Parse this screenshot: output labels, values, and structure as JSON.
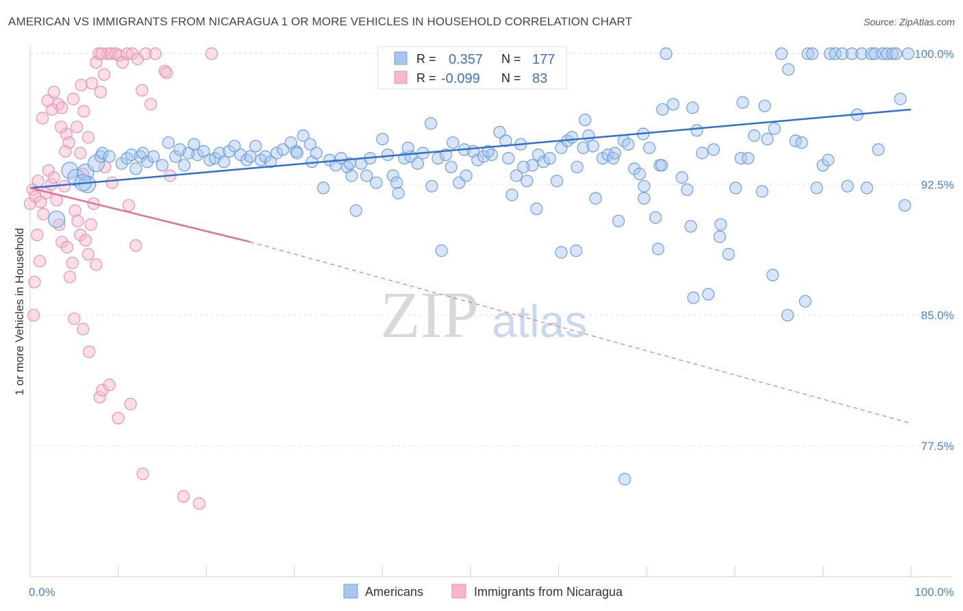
{
  "title": "AMERICAN VS IMMIGRANTS FROM NICARAGUA 1 OR MORE VEHICLES IN HOUSEHOLD CORRELATION CHART",
  "source": "Source: ZipAtlas.com",
  "watermark": {
    "zip": "ZIP",
    "atlas": "atlas"
  },
  "colors": {
    "blue_fill": "#a9c6ef",
    "blue_stroke": "#6a9ee0",
    "blue_line": "#2f6fcf",
    "pink_fill": "#f6b9cc",
    "pink_stroke": "#e890ad",
    "pink_line": "#e0709a",
    "tick": "#4a7fd4",
    "grid": "#e3e3e3"
  },
  "legend": {
    "r_label": "R =",
    "n_label": "N =",
    "rows": [
      {
        "series": "Americans",
        "r": "0.357",
        "n": "177"
      },
      {
        "series": "Immigrants from Nicaragua",
        "r": "-0.099",
        "n": "83"
      }
    ]
  },
  "bottom_legend": [
    "Americans",
    "Immigrants from Nicaragua"
  ],
  "chart_data": {
    "type": "scatter",
    "title": "AMERICAN VS IMMIGRANTS FROM NICARAGUA 1 OR MORE VEHICLES IN HOUSEHOLD CORRELATION CHART",
    "xlabel": "",
    "ylabel": "1 or more Vehicles in Household",
    "xlim": [
      0,
      100
    ],
    "ylim": [
      70,
      100.8
    ],
    "x_ticks": [
      0,
      10,
      20,
      30,
      40,
      50,
      60,
      70,
      80,
      90,
      100
    ],
    "x_tick_labels": {
      "0": "0.0%",
      "100": "100.0%"
    },
    "y_ticks": [
      77.5,
      85.0,
      92.5,
      100.0
    ],
    "y_tick_labels": [
      "77.5%",
      "85.0%",
      "92.5%",
      "100.0%"
    ],
    "grid": true,
    "legend_position": "top-center",
    "series": [
      {
        "name": "Americans",
        "r": 0.357,
        "n": 177,
        "trend": {
          "x": [
            0,
            100
          ],
          "y": [
            92.3,
            96.8
          ],
          "dashed_from": null
        },
        "points": [
          [
            3,
            90.5
          ],
          [
            4.5,
            93.3
          ],
          [
            5.2,
            92.9
          ],
          [
            6.3,
            93.2
          ],
          [
            6.5,
            92.5
          ],
          [
            6,
            92.6
          ],
          [
            7.5,
            93.7
          ],
          [
            8,
            94.1
          ],
          [
            8.2,
            94.3
          ],
          [
            9,
            94.1
          ],
          [
            10.4,
            93.7
          ],
          [
            11,
            94.0
          ],
          [
            11.5,
            94.2
          ],
          [
            12,
            93.4
          ],
          [
            12.5,
            94.1
          ],
          [
            12.8,
            94.3
          ],
          [
            13.3,
            93.8
          ],
          [
            14,
            94.1
          ],
          [
            15,
            93.6
          ],
          [
            15.7,
            94.9
          ],
          [
            16.5,
            94.1
          ],
          [
            17,
            94.5
          ],
          [
            17.5,
            93.6
          ],
          [
            18,
            94.3
          ],
          [
            18.6,
            94.8
          ],
          [
            19,
            94.2
          ],
          [
            19.7,
            94.4
          ],
          [
            20.4,
            93.9
          ],
          [
            21,
            94.0
          ],
          [
            21.5,
            94.3
          ],
          [
            22,
            93.8
          ],
          [
            22.6,
            94.4
          ],
          [
            23.2,
            94.7
          ],
          [
            23.9,
            94.2
          ],
          [
            24.6,
            93.9
          ],
          [
            25,
            94.1
          ],
          [
            25.6,
            94.7
          ],
          [
            26.2,
            93.9
          ],
          [
            26.7,
            94.1
          ],
          [
            27.3,
            93.8
          ],
          [
            28,
            94.3
          ],
          [
            28.7,
            94.5
          ],
          [
            29.6,
            94.9
          ],
          [
            30.2,
            94.4
          ],
          [
            31,
            95.3
          ],
          [
            31.8,
            94.8
          ],
          [
            32,
            93.8
          ],
          [
            32.5,
            94.3
          ],
          [
            33.3,
            92.3
          ],
          [
            34,
            93.9
          ],
          [
            34.7,
            93.6
          ],
          [
            35.3,
            94.0
          ],
          [
            36,
            93.5
          ],
          [
            36.5,
            93.0
          ],
          [
            37,
            91.0
          ],
          [
            37.6,
            93.7
          ],
          [
            38.2,
            93.0
          ],
          [
            38.6,
            94.0
          ],
          [
            39.3,
            92.6
          ],
          [
            40,
            95.1
          ],
          [
            40.6,
            94.2
          ],
          [
            41.2,
            93.0
          ],
          [
            41.8,
            92.0
          ],
          [
            42.5,
            94.0
          ],
          [
            43.2,
            94.1
          ],
          [
            44,
            93.7
          ],
          [
            44.6,
            94.3
          ],
          [
            45.5,
            96.0
          ],
          [
            46.3,
            94.0
          ],
          [
            47.2,
            94.2
          ],
          [
            47.8,
            93.5
          ],
          [
            48.7,
            92.6
          ],
          [
            49.3,
            94.5
          ],
          [
            49.5,
            93.0
          ],
          [
            50.3,
            94.4
          ],
          [
            50.8,
            93.9
          ],
          [
            51.5,
            94.1
          ],
          [
            52.4,
            94.2
          ],
          [
            53.3,
            95.5
          ],
          [
            54.3,
            94.0
          ],
          [
            55.2,
            93.0
          ],
          [
            55.7,
            94.8
          ],
          [
            56.4,
            92.7
          ],
          [
            57,
            93.6
          ],
          [
            57.7,
            94.2
          ],
          [
            58.3,
            93.8
          ],
          [
            59,
            94.0
          ],
          [
            59.8,
            92.7
          ],
          [
            60.3,
            94.6
          ],
          [
            61,
            95.0
          ],
          [
            61.5,
            95.2
          ],
          [
            62.1,
            93.5
          ],
          [
            62.8,
            94.6
          ],
          [
            63.4,
            95.3
          ],
          [
            64.2,
            91.7
          ],
          [
            65,
            94.0
          ],
          [
            65.6,
            94.2
          ],
          [
            66.2,
            94.0
          ],
          [
            66.8,
            90.4
          ],
          [
            67.4,
            95.0
          ],
          [
            67.9,
            94.8
          ],
          [
            68.6,
            93.4
          ],
          [
            69.2,
            93.1
          ],
          [
            69.7,
            92.4
          ],
          [
            70.3,
            94.6
          ],
          [
            71,
            90.6
          ],
          [
            71.5,
            93.6
          ],
          [
            72.2,
            100.0
          ],
          [
            73,
            97.1
          ],
          [
            74,
            92.9
          ],
          [
            74.6,
            92.2
          ],
          [
            75,
            90.1
          ],
          [
            75.7,
            95.6
          ],
          [
            76.3,
            94.3
          ],
          [
            77,
            86.2
          ],
          [
            77.6,
            94.5
          ],
          [
            78.4,
            90.2
          ],
          [
            79.3,
            88.5
          ],
          [
            80.1,
            92.3
          ],
          [
            80.7,
            94.0
          ],
          [
            81.5,
            94.0
          ],
          [
            82.2,
            95.3
          ],
          [
            83.1,
            92.1
          ],
          [
            83.7,
            95.1
          ],
          [
            84.3,
            87.3
          ],
          [
            85.3,
            100.0
          ],
          [
            86.1,
            99.1
          ],
          [
            86.9,
            95.0
          ],
          [
            87.6,
            94.9
          ],
          [
            88.3,
            100.0
          ],
          [
            88.8,
            100.0
          ],
          [
            89.3,
            92.3
          ],
          [
            90,
            93.6
          ],
          [
            90.8,
            100.0
          ],
          [
            91.4,
            100.0
          ],
          [
            92.2,
            100.0
          ],
          [
            92.8,
            92.4
          ],
          [
            93.3,
            100.0
          ],
          [
            93.9,
            96.5
          ],
          [
            94.4,
            100.0
          ],
          [
            95,
            92.3
          ],
          [
            95.5,
            100.0
          ],
          [
            95.9,
            100.0
          ],
          [
            96.3,
            94.5
          ],
          [
            96.8,
            100.0
          ],
          [
            97.3,
            100.0
          ],
          [
            97.9,
            100.0
          ],
          [
            98.3,
            100.0
          ],
          [
            98.8,
            97.4
          ],
          [
            99.3,
            91.3
          ],
          [
            99.7,
            100.0
          ],
          [
            84.5,
            95.7
          ],
          [
            90.6,
            93.9
          ],
          [
            86,
            85.0
          ],
          [
            88,
            85.8
          ],
          [
            67.5,
            75.6
          ],
          [
            60.3,
            88.6
          ],
          [
            62,
            88.7
          ],
          [
            54,
            95.0
          ],
          [
            56,
            93.5
          ],
          [
            46.7,
            88.7
          ],
          [
            54.7,
            91.9
          ],
          [
            41.6,
            92.6
          ],
          [
            36.3,
            93.7
          ],
          [
            57.5,
            91.1
          ],
          [
            58.8,
            100.0
          ],
          [
            30.3,
            94.3
          ],
          [
            42.9,
            94.6
          ],
          [
            45.6,
            92.4
          ],
          [
            48,
            94.9
          ],
          [
            52,
            94.4
          ],
          [
            63.9,
            94.7
          ],
          [
            66.4,
            94.3
          ],
          [
            75.3,
            86.0
          ],
          [
            71.3,
            88.8
          ],
          [
            78.3,
            89.5
          ],
          [
            63,
            96.2
          ],
          [
            69.7,
            91.7
          ],
          [
            71.8,
            96.8
          ],
          [
            80.9,
            97.2
          ],
          [
            83.4,
            97.0
          ],
          [
            75.2,
            96.9
          ],
          [
            69.6,
            95.4
          ],
          [
            71.7,
            93.6
          ]
        ]
      },
      {
        "name": "Immigrants from Nicaragua",
        "r": -0.099,
        "n": 83,
        "trend": {
          "x": [
            0,
            25
          ],
          "y": [
            92.3,
            89.2
          ],
          "dashed_to": [
            100,
            78.8
          ]
        },
        "points": [
          [
            0,
            91.4
          ],
          [
            0.3,
            92.2
          ],
          [
            0.6,
            91.8
          ],
          [
            0.9,
            92.7
          ],
          [
            1.2,
            91.5
          ],
          [
            1.5,
            90.8
          ],
          [
            1.8,
            92.0
          ],
          [
            2.1,
            93.3
          ],
          [
            2.4,
            92.5
          ],
          [
            2.7,
            92.9
          ],
          [
            3,
            91.6
          ],
          [
            3.3,
            90.2
          ],
          [
            3.6,
            89.2
          ],
          [
            3.9,
            92.4
          ],
          [
            4.2,
            88.9
          ],
          [
            4.5,
            87.2
          ],
          [
            4.8,
            88.0
          ],
          [
            5.1,
            91.0
          ],
          [
            5.4,
            90.4
          ],
          [
            5.7,
            89.6
          ],
          [
            6,
            93.1
          ],
          [
            6.3,
            89.3
          ],
          [
            6.6,
            88.5
          ],
          [
            6.9,
            90.2
          ],
          [
            7.2,
            91.4
          ],
          [
            7.5,
            87.9
          ],
          [
            0.5,
            86.9
          ],
          [
            0.4,
            85.0
          ],
          [
            0.8,
            89.6
          ],
          [
            1.1,
            88.1
          ],
          [
            2.7,
            97.8
          ],
          [
            3.2,
            97.1
          ],
          [
            2.5,
            96.8
          ],
          [
            3.6,
            96.9
          ],
          [
            4.1,
            95.4
          ],
          [
            4.4,
            94.9
          ],
          [
            4.9,
            97.4
          ],
          [
            5.3,
            95.8
          ],
          [
            5.7,
            94.3
          ],
          [
            6.1,
            96.7
          ],
          [
            6.6,
            95.2
          ],
          [
            7.0,
            98.3
          ],
          [
            7.5,
            99.5
          ],
          [
            8.0,
            97.8
          ],
          [
            8.4,
            98.8
          ],
          [
            8.8,
            100.0
          ],
          [
            9.2,
            100.0
          ],
          [
            9.7,
            100.0
          ],
          [
            10.1,
            99.9
          ],
          [
            10.5,
            99.5
          ],
          [
            11,
            100.0
          ],
          [
            11.6,
            100.0
          ],
          [
            12.2,
            99.7
          ],
          [
            12.7,
            97.9
          ],
          [
            13.1,
            100.0
          ],
          [
            13.7,
            97.1
          ],
          [
            14.2,
            100.0
          ],
          [
            15.3,
            99.0
          ],
          [
            15.5,
            98.9
          ],
          [
            20.6,
            100.0
          ],
          [
            7.8,
            100.0
          ],
          [
            8.1,
            100.0
          ],
          [
            5.0,
            84.8
          ],
          [
            6.7,
            82.9
          ],
          [
            6.0,
            84.2
          ],
          [
            7.9,
            80.3
          ],
          [
            8.2,
            80.7
          ],
          [
            9.0,
            81.0
          ],
          [
            10.0,
            79.1
          ],
          [
            11.4,
            79.9
          ],
          [
            12.8,
            75.9
          ],
          [
            17.4,
            74.6
          ],
          [
            19.2,
            74.2
          ],
          [
            11.2,
            91.3
          ],
          [
            15.9,
            93.0
          ],
          [
            12.0,
            89.0
          ],
          [
            9.3,
            92.6
          ],
          [
            8.5,
            93.5
          ],
          [
            3.5,
            95.8
          ],
          [
            4.0,
            94.4
          ],
          [
            2.0,
            97.3
          ],
          [
            1.4,
            96.3
          ],
          [
            5.8,
            98.2
          ]
        ]
      }
    ]
  }
}
